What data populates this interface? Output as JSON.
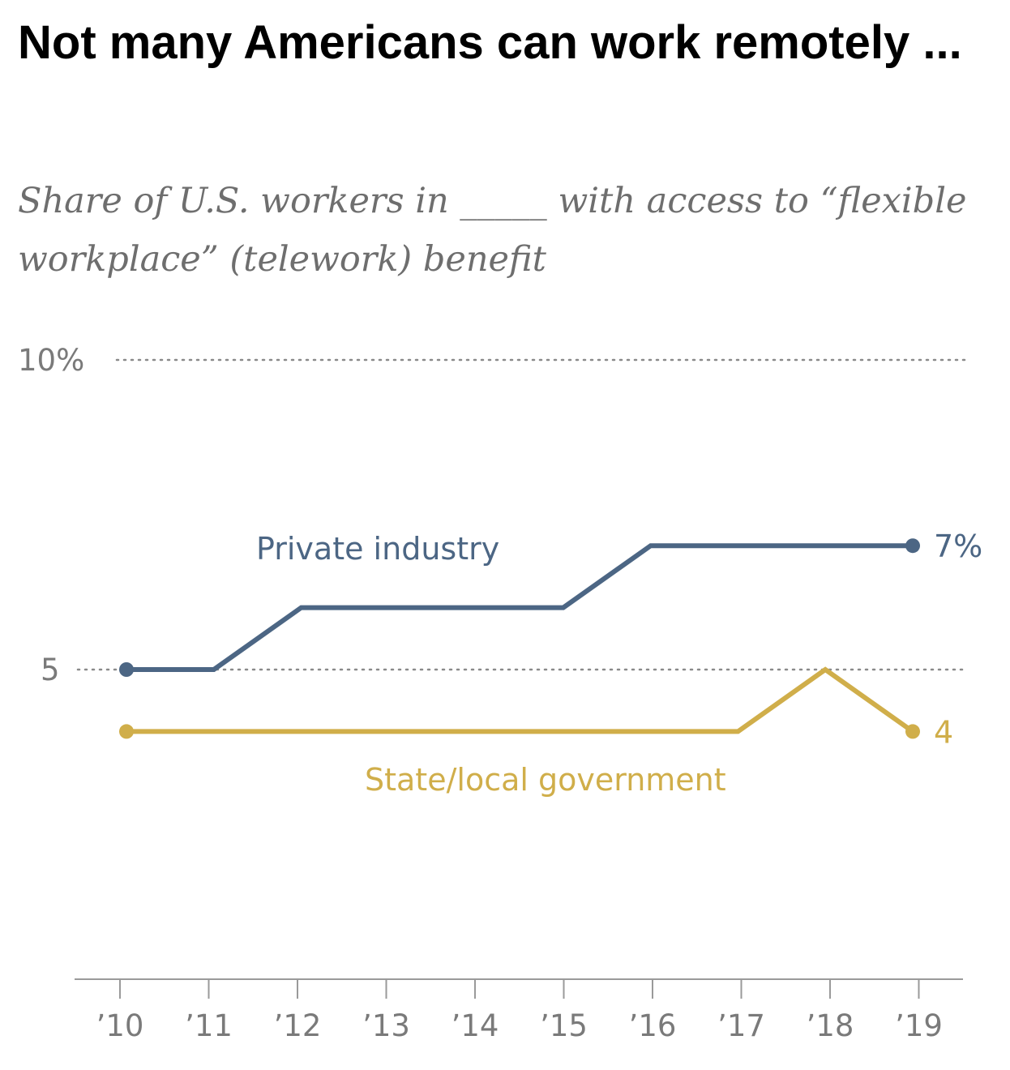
{
  "title": "Not many Americans can work remotely ...",
  "subtitle": "Share of U.S. workers in _____ with access to “flexible workplace” (telework) benefit",
  "chart_data": {
    "type": "line",
    "x": [
      2010,
      2011,
      2012,
      2013,
      2014,
      2015,
      2016,
      2017,
      2018,
      2019
    ],
    "x_tick_labels": [
      "’10",
      "’11",
      "’12",
      "’13",
      "’14",
      "’15",
      "’16",
      "’17",
      "’18",
      "’19"
    ],
    "y_ticks": [
      {
        "value": 10,
        "label": "10%"
      },
      {
        "value": 5,
        "label": "5"
      }
    ],
    "ylim": [
      0,
      10
    ],
    "grid": "dotted horizontal at tick values",
    "series": [
      {
        "name": "Private industry",
        "color": "#4c6684",
        "values": [
          5,
          5,
          6,
          6,
          6,
          6,
          7,
          7,
          7,
          7
        ],
        "end_label": "7%",
        "markers": "first-and-last"
      },
      {
        "name": "State/local government",
        "color": "#d0ae4a",
        "values": [
          4,
          4,
          4,
          4,
          4,
          4,
          4,
          4,
          5,
          4
        ],
        "end_label": "4",
        "markers": "first-and-last"
      }
    ]
  }
}
